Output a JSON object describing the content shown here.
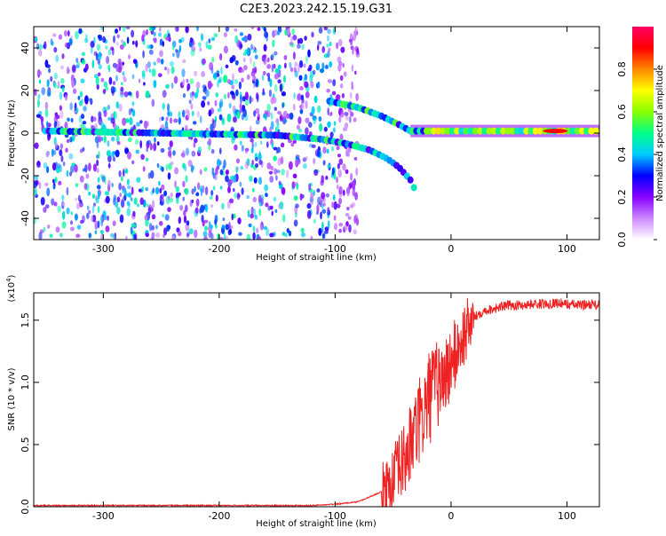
{
  "figure": {
    "title": "C2E3.2023.242.15.19.G31"
  },
  "chart_data": [
    {
      "type": "heatmap",
      "title": "C2E3.2023.242.15.19.G31",
      "xlabel": "Height of straight line (km)",
      "ylabel": "Frequency (Hz)",
      "xlim": [
        -360,
        128
      ],
      "ylim": [
        -50,
        50
      ],
      "xticks": [
        -300,
        -200,
        -100,
        0,
        100
      ],
      "yticks": [
        -40,
        -20,
        0,
        20,
        40
      ],
      "colorbar": {
        "label": "Normalized spectral amplitude",
        "range": [
          0,
          1
        ],
        "ticks": [
          "0.0",
          "0.2",
          "0.4",
          "0.6",
          "0.8"
        ],
        "colors": [
          "#ffffff",
          "#cc88ff",
          "#8800ff",
          "#0000ff",
          "#00ccff",
          "#00ff88",
          "#88ff00",
          "#ffff00",
          "#ff8800",
          "#ff0000",
          "#ff0066"
        ]
      },
      "features": {
        "noise_region_x": [
          -360,
          -100
        ],
        "main_trace": [
          [
            -350,
            1
          ],
          [
            -250,
            0
          ],
          [
            -150,
            -1
          ],
          [
            -110,
            -3
          ],
          [
            -90,
            -5
          ],
          [
            -70,
            -8
          ],
          [
            -55,
            -12
          ],
          [
            -45,
            -16
          ],
          [
            -35,
            -22
          ],
          [
            -30,
            -28
          ]
        ],
        "upper_trace": [
          [
            -105,
            15
          ],
          [
            -80,
            12
          ],
          [
            -60,
            8
          ],
          [
            -45,
            4
          ],
          [
            -35,
            1
          ],
          [
            -20,
            1
          ]
        ],
        "steady_line": [
          [
            -35,
            1
          ],
          [
            0,
            1
          ],
          [
            50,
            1
          ],
          [
            128,
            1
          ]
        ]
      }
    },
    {
      "type": "line",
      "xlabel": "Height of straight line (km)",
      "ylabel": "SNR (10 * v/v)",
      "yscale_label": "(x10",
      "yscale_exp": "4",
      "yscale_close": ")",
      "xlim": [
        -360,
        128
      ],
      "ylim": [
        0,
        1.72
      ],
      "xticks": [
        -300,
        -200,
        -100,
        0,
        100
      ],
      "yticks": [
        "0.0",
        "0.5",
        "1.0",
        "1.5"
      ],
      "ytick_values": [
        0,
        0.5,
        1.0,
        1.5
      ],
      "series": [
        {
          "color": "#ee2222",
          "x": [
            -360,
            -300,
            -200,
            -150,
            -120,
            -100,
            -80,
            -60,
            -50,
            -45,
            -40,
            -35,
            -30,
            -25,
            -20,
            -15,
            -10,
            -5,
            0,
            5,
            10,
            15,
            20,
            25,
            30,
            40,
            50,
            60,
            70,
            80,
            90,
            100,
            110,
            120,
            128
          ],
          "values": [
            0.01,
            0.01,
            0.01,
            0.01,
            0.01,
            0.02,
            0.04,
            0.12,
            0.22,
            0.3,
            0.38,
            0.5,
            0.62,
            0.72,
            0.85,
            0.95,
            1.0,
            1.05,
            1.15,
            1.25,
            1.35,
            1.45,
            1.52,
            1.56,
            1.58,
            1.6,
            1.62,
            1.62,
            1.63,
            1.63,
            1.64,
            1.63,
            1.62,
            1.63,
            1.62
          ]
        }
      ]
    }
  ]
}
